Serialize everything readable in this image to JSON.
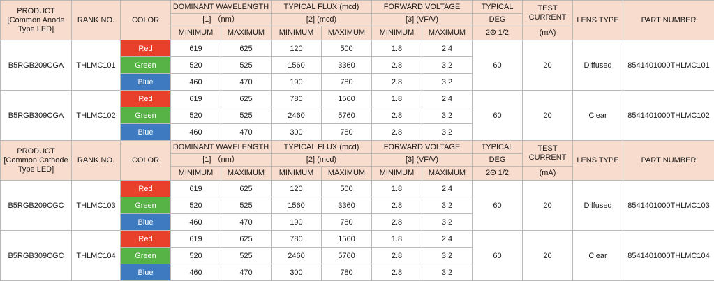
{
  "headers": {
    "product_anode": "PRODUCT [Common Anode Type LED]",
    "product_cathode": "PRODUCT [Common Cathode Type LED]",
    "rank": "RANK NO.",
    "color": "COLOR",
    "wavelength": "DOMINANT WAVELENGTH",
    "wavelength_unit": "[1] （nm）",
    "flux": "TYPICAL FLUX (mcd)",
    "flux_unit": "[2] (mcd)",
    "voltage": "FORWARD VOLTAGE",
    "voltage_unit": "[3] (VF/V)",
    "typical": "TYPICAL",
    "deg": "DEG",
    "angle": "2Θ 1/2",
    "test_current": "TEST CURRENT",
    "current_unit": "(mA)",
    "lens": "LENS TYPE",
    "part": "PART NUMBER",
    "min": "MINIMUM",
    "max": "MAXIMUM"
  },
  "colors": {
    "red": "#e8402a",
    "green": "#57b345",
    "blue": "#3d7ac0",
    "header_bg": "#f8dccd"
  },
  "sections": [
    {
      "groups": [
        {
          "product": "B5RGB209CGA",
          "rank": "THLMC101",
          "deg": "60",
          "current": "20",
          "lens": "Diffused",
          "part": "8541401000THLMC101",
          "rows": [
            {
              "color": "Red",
              "wl_min": "619",
              "wl_max": "625",
              "flux_min": "120",
              "flux_max": "500",
              "vf_min": "1.8",
              "vf_max": "2.4"
            },
            {
              "color": "Green",
              "wl_min": "520",
              "wl_max": "525",
              "flux_min": "1560",
              "flux_max": "3360",
              "vf_min": "2.8",
              "vf_max": "3.2"
            },
            {
              "color": "Blue",
              "wl_min": "460",
              "wl_max": "470",
              "flux_min": "190",
              "flux_max": "780",
              "vf_min": "2.8",
              "vf_max": "3.2"
            }
          ]
        },
        {
          "product": "B5RGB309CGA",
          "rank": "THLMC102",
          "deg": "60",
          "current": "20",
          "lens": "Clear",
          "part": "8541401000THLMC102",
          "rows": [
            {
              "color": "Red",
              "wl_min": "619",
              "wl_max": "625",
              "flux_min": "780",
              "flux_max": "1560",
              "vf_min": "1.8",
              "vf_max": "2.4"
            },
            {
              "color": "Green",
              "wl_min": "520",
              "wl_max": "525",
              "flux_min": "2460",
              "flux_max": "5760",
              "vf_min": "2.8",
              "vf_max": "3.2"
            },
            {
              "color": "Blue",
              "wl_min": "460",
              "wl_max": "470",
              "flux_min": "300",
              "flux_max": "780",
              "vf_min": "2.8",
              "vf_max": "3.2"
            }
          ]
        }
      ]
    },
    {
      "groups": [
        {
          "product": "B5RGB209CGC",
          "rank": "THLMC103",
          "deg": "60",
          "current": "20",
          "lens": "Diffused",
          "part": "8541401000THLMC103",
          "rows": [
            {
              "color": "Red",
              "wl_min": "619",
              "wl_max": "625",
              "flux_min": "120",
              "flux_max": "500",
              "vf_min": "1.8",
              "vf_max": "2.4"
            },
            {
              "color": "Green",
              "wl_min": "520",
              "wl_max": "525",
              "flux_min": "1560",
              "flux_max": "3360",
              "vf_min": "2.8",
              "vf_max": "3.2"
            },
            {
              "color": "Blue",
              "wl_min": "460",
              "wl_max": "470",
              "flux_min": "190",
              "flux_max": "780",
              "vf_min": "2.8",
              "vf_max": "3.2"
            }
          ]
        },
        {
          "product": "B5RGB309CGC",
          "rank": "THLMC104",
          "deg": "60",
          "current": "20",
          "lens": "Clear",
          "part": "8541401000THLMC104",
          "rows": [
            {
              "color": "Red",
              "wl_min": "619",
              "wl_max": "625",
              "flux_min": "780",
              "flux_max": "1560",
              "vf_min": "1.8",
              "vf_max": "2.4"
            },
            {
              "color": "Green",
              "wl_min": "520",
              "wl_max": "525",
              "flux_min": "2460",
              "flux_max": "5760",
              "vf_min": "2.8",
              "vf_max": "3.2"
            },
            {
              "color": "Blue",
              "wl_min": "460",
              "wl_max": "470",
              "flux_min": "300",
              "flux_max": "780",
              "vf_min": "2.8",
              "vf_max": "3.2"
            }
          ]
        }
      ]
    }
  ]
}
